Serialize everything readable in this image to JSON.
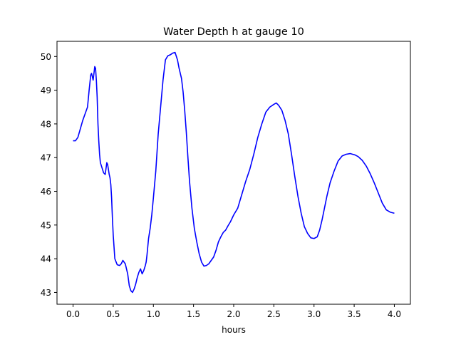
{
  "chart_data": {
    "type": "line",
    "title": "Water Depth h at gauge 10",
    "xlabel": "hours",
    "ylabel": "",
    "xlim": [
      -0.2,
      4.2
    ],
    "ylim": [
      42.65,
      50.45
    ],
    "xticks": [
      0.0,
      0.5,
      1.0,
      1.5,
      2.0,
      2.5,
      3.0,
      3.5,
      4.0
    ],
    "xtick_labels": [
      "0.0",
      "0.5",
      "1.0",
      "1.5",
      "2.0",
      "2.5",
      "3.0",
      "3.5",
      "4.0"
    ],
    "yticks": [
      43,
      44,
      45,
      46,
      47,
      48,
      49,
      50
    ],
    "ytick_labels": [
      "43",
      "44",
      "45",
      "46",
      "47",
      "48",
      "49",
      "50"
    ],
    "grid": false,
    "series": [
      {
        "color": "#0000ff",
        "x": [
          0.0,
          0.03,
          0.06,
          0.09,
          0.12,
          0.15,
          0.18,
          0.2,
          0.22,
          0.23,
          0.24,
          0.25,
          0.26,
          0.27,
          0.28,
          0.29,
          0.3,
          0.31,
          0.32,
          0.33,
          0.34,
          0.36,
          0.38,
          0.4,
          0.42,
          0.43,
          0.44,
          0.45,
          0.46,
          0.47,
          0.48,
          0.49,
          0.5,
          0.52,
          0.55,
          0.58,
          0.6,
          0.62,
          0.65,
          0.68,
          0.7,
          0.72,
          0.74,
          0.76,
          0.78,
          0.8,
          0.82,
          0.84,
          0.86,
          0.88,
          0.9,
          0.91,
          0.92,
          0.93,
          0.94,
          0.96,
          0.98,
          1.0,
          1.03,
          1.06,
          1.09,
          1.12,
          1.15,
          1.18,
          1.21,
          1.24,
          1.27,
          1.3,
          1.32,
          1.35,
          1.37,
          1.39,
          1.41,
          1.43,
          1.45,
          1.48,
          1.51,
          1.54,
          1.57,
          1.6,
          1.63,
          1.66,
          1.69,
          1.72,
          1.75,
          1.78,
          1.81,
          1.84,
          1.87,
          1.9,
          1.93,
          1.96,
          2.0,
          2.05,
          2.1,
          2.15,
          2.2,
          2.25,
          2.3,
          2.35,
          2.4,
          2.45,
          2.5,
          2.53,
          2.56,
          2.6,
          2.64,
          2.68,
          2.72,
          2.76,
          2.8,
          2.84,
          2.88,
          2.92,
          2.96,
          3.0,
          3.04,
          3.07,
          3.1,
          3.13,
          3.16,
          3.2,
          3.25,
          3.3,
          3.35,
          3.4,
          3.45,
          3.48,
          3.51,
          3.55,
          3.6,
          3.65,
          3.7,
          3.75,
          3.8,
          3.85,
          3.9,
          3.95,
          4.0
        ],
        "y": [
          47.5,
          47.5,
          47.6,
          47.85,
          48.1,
          48.3,
          48.5,
          49.0,
          49.45,
          49.5,
          49.4,
          49.3,
          49.5,
          49.7,
          49.65,
          49.3,
          48.8,
          48.0,
          47.5,
          47.1,
          46.85,
          46.7,
          46.55,
          46.5,
          46.85,
          46.8,
          46.65,
          46.5,
          46.4,
          46.2,
          45.8,
          45.2,
          44.7,
          44.0,
          43.82,
          43.8,
          43.85,
          43.95,
          43.85,
          43.55,
          43.2,
          43.05,
          43.0,
          43.1,
          43.25,
          43.45,
          43.6,
          43.7,
          43.55,
          43.65,
          43.8,
          43.9,
          44.1,
          44.35,
          44.6,
          44.9,
          45.3,
          45.8,
          46.6,
          47.7,
          48.5,
          49.3,
          49.9,
          50.02,
          50.05,
          50.1,
          50.12,
          49.9,
          49.65,
          49.35,
          48.95,
          48.4,
          47.75,
          47.0,
          46.3,
          45.5,
          44.9,
          44.5,
          44.15,
          43.9,
          43.78,
          43.8,
          43.85,
          43.95,
          44.05,
          44.25,
          44.5,
          44.65,
          44.78,
          44.85,
          44.98,
          45.1,
          45.3,
          45.5,
          45.9,
          46.3,
          46.65,
          47.1,
          47.6,
          48.0,
          48.35,
          48.5,
          48.58,
          48.62,
          48.55,
          48.4,
          48.1,
          47.7,
          47.1,
          46.45,
          45.85,
          45.35,
          44.95,
          44.75,
          44.62,
          44.6,
          44.65,
          44.85,
          45.15,
          45.5,
          45.85,
          46.25,
          46.6,
          46.9,
          47.05,
          47.1,
          47.12,
          47.1,
          47.08,
          47.03,
          46.92,
          46.75,
          46.52,
          46.25,
          45.95,
          45.65,
          45.45,
          45.38,
          45.35
        ]
      }
    ]
  }
}
